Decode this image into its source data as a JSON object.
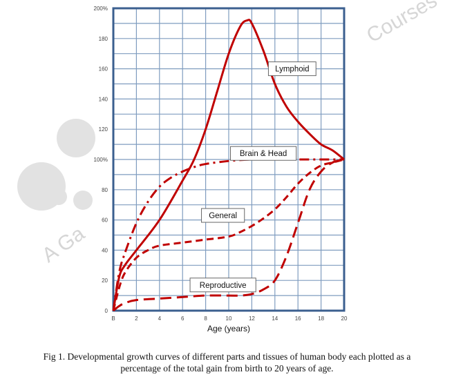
{
  "chart_data": {
    "type": "line",
    "title": "",
    "xlabel": "Age (years)",
    "ylabel": "",
    "xlim": [
      0,
      20
    ],
    "ylim": [
      0,
      200
    ],
    "grid": true,
    "x_ticks": [
      "B",
      "2",
      "4",
      "6",
      "8",
      "10",
      "12",
      "14",
      "16",
      "18",
      "20"
    ],
    "y_ticks": [
      "0",
      "20",
      "40",
      "60",
      "80",
      "100%",
      "120",
      "140",
      "160",
      "180",
      "200%"
    ],
    "legend_position": "inline labels",
    "series": [
      {
        "name": "Lymphoid",
        "style": "solid",
        "x": [
          0,
          0.5,
          1,
          2,
          4,
          6,
          7,
          8,
          9,
          10,
          11,
          11.6,
          12,
          13,
          14,
          15,
          16,
          17,
          18,
          19,
          20
        ],
        "y": [
          0,
          22,
          30,
          40,
          60,
          86,
          100,
          120,
          145,
          170,
          188,
          192,
          190,
          172,
          150,
          135,
          125,
          117,
          110,
          106,
          100
        ]
      },
      {
        "name": "Brain & Head",
        "style": "dash-dot",
        "x": [
          0,
          0.5,
          1,
          2,
          3,
          4,
          5,
          6,
          7,
          8,
          10,
          12,
          14,
          16,
          18,
          20
        ],
        "y": [
          0,
          25,
          38,
          58,
          72,
          82,
          88,
          92,
          95,
          97,
          99,
          100,
          100,
          100,
          100,
          100
        ]
      },
      {
        "name": "General",
        "style": "dashed",
        "x": [
          0,
          0.5,
          1,
          2,
          3,
          4,
          6,
          8,
          10,
          11,
          12,
          13,
          14,
          15,
          16,
          17,
          18,
          19,
          20
        ],
        "y": [
          0,
          15,
          25,
          35,
          40,
          43,
          45,
          47,
          49,
          52,
          56,
          61,
          67,
          75,
          84,
          91,
          96,
          98,
          100
        ]
      },
      {
        "name": "Reproductive",
        "style": "long-dash",
        "x": [
          0,
          0.5,
          1,
          2,
          4,
          6,
          8,
          10,
          11,
          12,
          13,
          14,
          15,
          16,
          17,
          18,
          19,
          20
        ],
        "y": [
          0,
          3,
          5,
          7,
          8,
          9,
          10,
          10,
          10,
          11,
          14,
          20,
          36,
          58,
          80,
          92,
          98,
          100
        ]
      }
    ],
    "annotations": [
      {
        "text": "Lymphoid",
        "x": 15.5,
        "y": 160
      },
      {
        "text": "Brain & Head",
        "x": 13,
        "y": 104
      },
      {
        "text": "General",
        "x": 9.5,
        "y": 63
      },
      {
        "text": "Reproductive",
        "x": 9.5,
        "y": 17
      }
    ],
    "colors": {
      "line": "#c00000",
      "axis": "#3b5f8f",
      "grid": "#7f9cbf"
    }
  },
  "caption": {
    "line1": "Fig 1. Developmental growth curves of different parts and tissues of human body each plotted as a",
    "line2": "percentage of the total gain from birth to 20 years of age."
  },
  "watermark": {
    "right": "Courses",
    "left": "A Ga"
  }
}
